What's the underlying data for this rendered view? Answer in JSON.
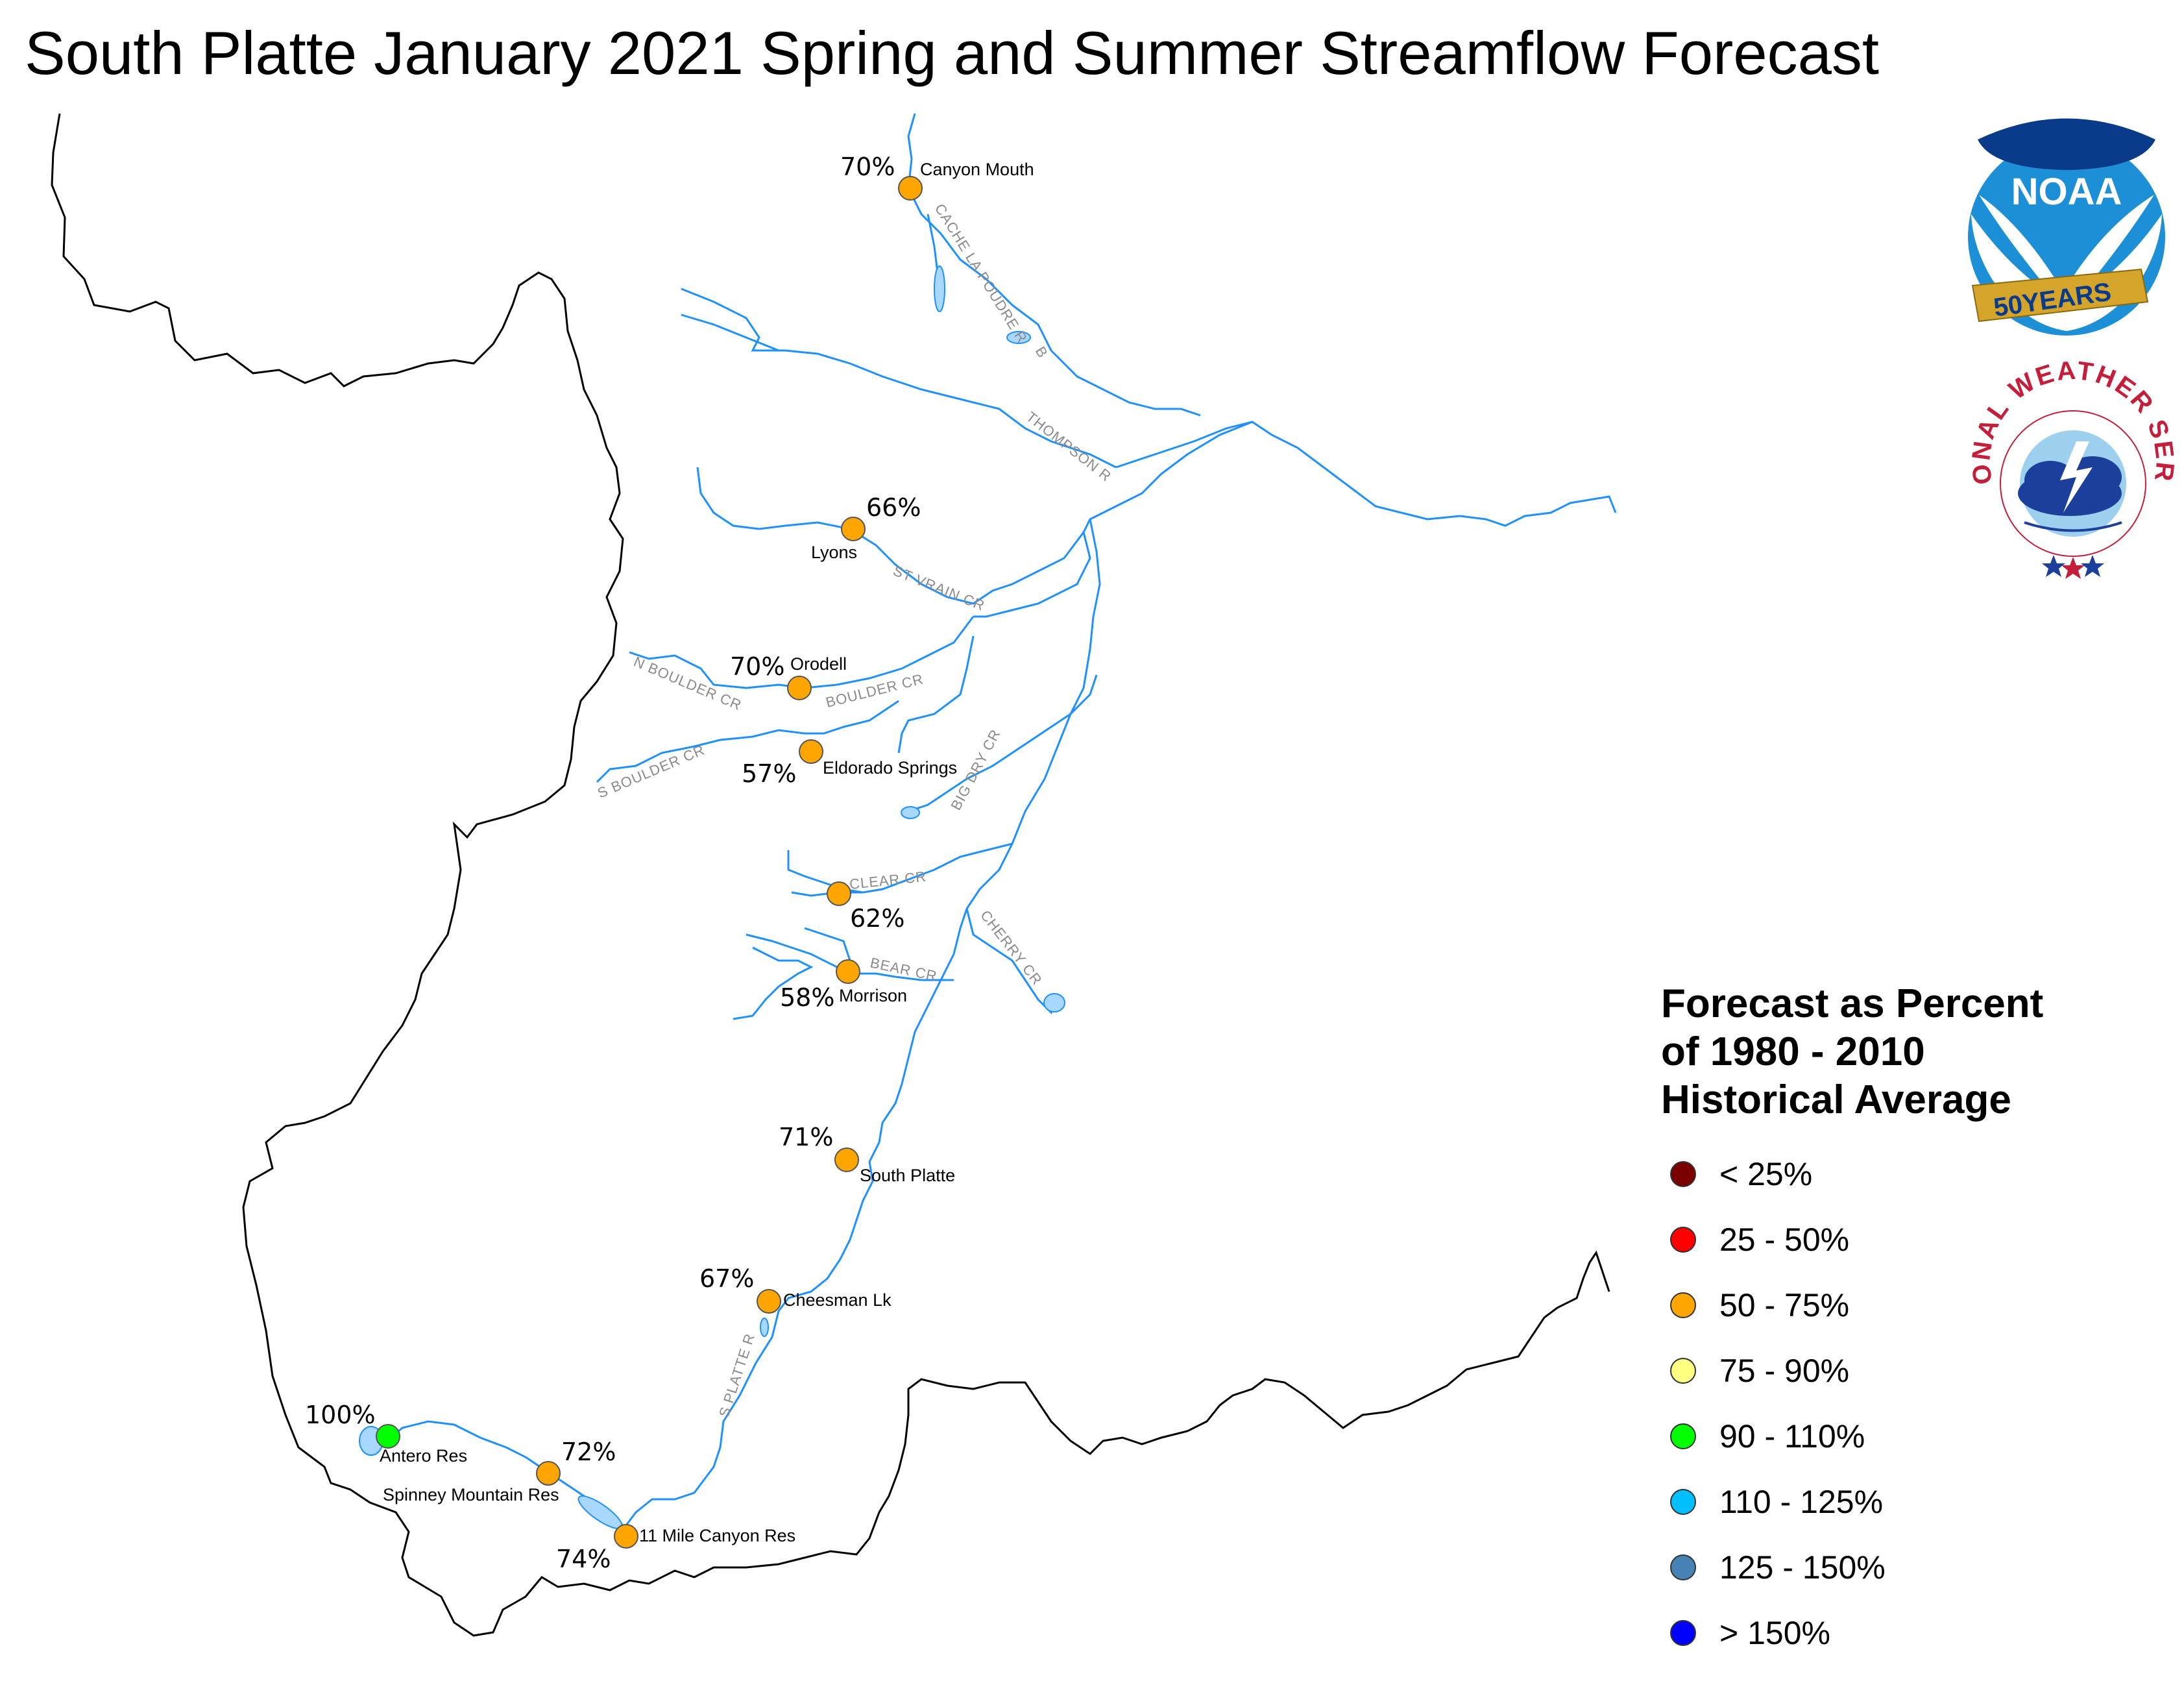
{
  "title": "South Platte January 2021 Spring and Summer Streamflow Forecast",
  "legend": {
    "title_lines": [
      "Forecast as Percent",
      "of 1980 - 2010",
      "Historical Average"
    ],
    "items": [
      {
        "label": "< 25%",
        "color": "#7a0000"
      },
      {
        "label": "25 - 50%",
        "color": "#ff0000"
      },
      {
        "label": "50 - 75%",
        "color": "#ffa500"
      },
      {
        "label": "75 - 90%",
        "color": "#ffff80"
      },
      {
        "label": "90 - 110%",
        "color": "#00ff00"
      },
      {
        "label": "110 - 125%",
        "color": "#00bfff"
      },
      {
        "label": "125 - 150%",
        "color": "#4682b4"
      },
      {
        "label": "> 150%",
        "color": "#0000ff"
      }
    ]
  },
  "stations": [
    {
      "name": "Canyon Mouth",
      "percent": "70%",
      "color": "#ffa500"
    },
    {
      "name": "Lyons",
      "percent": "66%",
      "color": "#ffa500"
    },
    {
      "name": "Orodell",
      "percent": "70%",
      "color": "#ffa500"
    },
    {
      "name": "Eldorado Springs",
      "percent": "57%",
      "color": "#ffa500"
    },
    {
      "name": "",
      "percent": "62%",
      "color": "#ffa500"
    },
    {
      "name": "Morrison",
      "percent": "58%",
      "color": "#ffa500"
    },
    {
      "name": "South Platte",
      "percent": "71%",
      "color": "#ffa500"
    },
    {
      "name": "Cheesman Lk",
      "percent": "67%",
      "color": "#ffa500"
    },
    {
      "name": "Antero Res",
      "percent": "100%",
      "color": "#00ff00"
    },
    {
      "name": "Spinney Mountain Res",
      "percent": "72%",
      "color": "#ffa500"
    },
    {
      "name": "11 Mile Canyon Res",
      "percent": "74%",
      "color": "#ffa500"
    }
  ],
  "rivers": [
    "CACHE LA POUDRE R",
    "B",
    "THOMPSON R",
    "ST VRAIN CR",
    "N BOULDER CR",
    "BOULDER CR",
    "S BOULDER CR",
    "BIG DRY CR",
    "CLEAR CR",
    "CHERRY CR",
    "BEAR CR",
    "S PLATTE R"
  ],
  "logos": {
    "noaa": {
      "text": "NOAA",
      "ribbon": "50YEARS",
      "icon": "noaa-logo"
    },
    "nws": {
      "ring_text": "NATIONAL WEATHER SERVICE",
      "icon": "nws-logo"
    }
  },
  "colors": {
    "river": "#1e90ff",
    "boundary": "#000000",
    "lake": "#a8d8ff"
  }
}
